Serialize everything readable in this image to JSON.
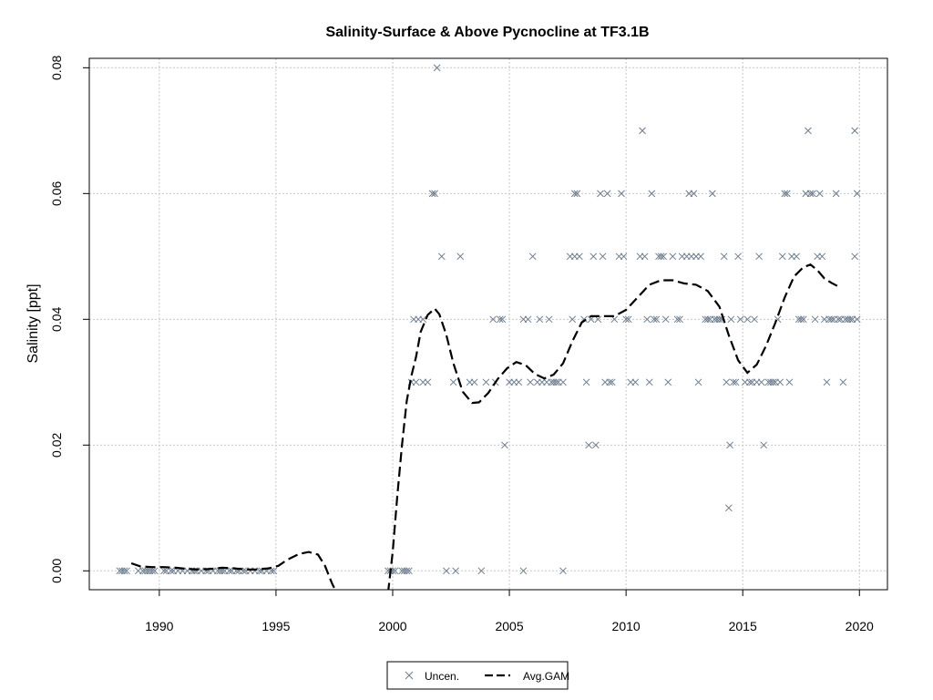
{
  "chart_data": {
    "type": "scatter",
    "title": "Salinity-Surface & Above Pycnocline at TF3.1B",
    "xlabel": "",
    "ylabel": "Salinity [ppt]",
    "xlim": [
      1987.0,
      2021.2
    ],
    "ylim": [
      -0.003,
      0.0815
    ],
    "x_ticks": [
      1990,
      1995,
      2000,
      2005,
      2010,
      2015,
      2020
    ],
    "y_ticks": [
      0.0,
      0.02,
      0.04,
      0.06,
      0.08
    ],
    "y_tick_labels": [
      "0.00",
      "0.02",
      "0.04",
      "0.06",
      "0.08"
    ],
    "grid": true,
    "legend_position": "bottom-center",
    "legend": [
      {
        "label": "Uncen.",
        "marker": "x",
        "color": "#6b7b8c"
      },
      {
        "label": "Avg.GAM",
        "style": "dashed",
        "color": "#000000"
      }
    ],
    "series": [
      {
        "name": "Uncen.",
        "marker": "x",
        "color": "#6b7b8c",
        "points": [
          [
            1988.3,
            0
          ],
          [
            1988.4,
            0
          ],
          [
            1988.5,
            0
          ],
          [
            1988.6,
            0
          ],
          [
            1989.1,
            0
          ],
          [
            1989.3,
            0
          ],
          [
            1989.4,
            0
          ],
          [
            1989.5,
            0
          ],
          [
            1989.6,
            0
          ],
          [
            1989.7,
            0
          ],
          [
            1989.8,
            0
          ],
          [
            1990.2,
            0
          ],
          [
            1990.3,
            0
          ],
          [
            1990.5,
            0
          ],
          [
            1990.6,
            0
          ],
          [
            1990.8,
            0
          ],
          [
            1991.0,
            0
          ],
          [
            1991.2,
            0
          ],
          [
            1991.4,
            0
          ],
          [
            1991.5,
            0
          ],
          [
            1991.6,
            0
          ],
          [
            1991.8,
            0
          ],
          [
            1992.0,
            0
          ],
          [
            1992.1,
            0
          ],
          [
            1992.3,
            0
          ],
          [
            1992.5,
            0
          ],
          [
            1992.6,
            0
          ],
          [
            1992.7,
            0
          ],
          [
            1992.8,
            0
          ],
          [
            1993.0,
            0
          ],
          [
            1993.1,
            0
          ],
          [
            1993.3,
            0
          ],
          [
            1993.4,
            0
          ],
          [
            1993.6,
            0
          ],
          [
            1993.7,
            0
          ],
          [
            1993.9,
            0
          ],
          [
            1994.1,
            0
          ],
          [
            1994.3,
            0
          ],
          [
            1994.4,
            0
          ],
          [
            1994.6,
            0
          ],
          [
            1994.8,
            0
          ],
          [
            1994.9,
            0
          ],
          [
            1999.8,
            0
          ],
          [
            1999.9,
            0
          ],
          [
            2000.0,
            0
          ],
          [
            2000.1,
            0
          ],
          [
            2000.4,
            0
          ],
          [
            2000.5,
            0
          ],
          [
            2000.6,
            0
          ],
          [
            2000.7,
            0
          ],
          [
            2000.8,
            0.03
          ],
          [
            2001.0,
            0.03
          ],
          [
            2000.9,
            0.04
          ],
          [
            2001.1,
            0.04
          ],
          [
            2001.3,
            0.04
          ],
          [
            2001.3,
            0.03
          ],
          [
            2001.5,
            0.03
          ],
          [
            2001.7,
            0.06
          ],
          [
            2001.8,
            0.06
          ],
          [
            2001.9,
            0.08
          ],
          [
            2002.1,
            0.05
          ],
          [
            2002.3,
            0
          ],
          [
            2002.6,
            0.03
          ],
          [
            2002.7,
            0
          ],
          [
            2002.9,
            0.05
          ],
          [
            2003.3,
            0.03
          ],
          [
            2003.5,
            0.03
          ],
          [
            2003.8,
            0
          ],
          [
            2004.0,
            0.03
          ],
          [
            2004.3,
            0.04
          ],
          [
            2004.4,
            0.03
          ],
          [
            2004.6,
            0.04
          ],
          [
            2004.7,
            0.04
          ],
          [
            2004.8,
            0.02
          ],
          [
            2005.0,
            0.03
          ],
          [
            2005.2,
            0.03
          ],
          [
            2005.4,
            0.03
          ],
          [
            2005.6,
            0
          ],
          [
            2005.6,
            0.04
          ],
          [
            2005.8,
            0.04
          ],
          [
            2005.9,
            0.03
          ],
          [
            2006.0,
            0.05
          ],
          [
            2006.2,
            0.03
          ],
          [
            2006.3,
            0.04
          ],
          [
            2006.4,
            0.03
          ],
          [
            2006.6,
            0.03
          ],
          [
            2006.7,
            0.04
          ],
          [
            2006.8,
            0.03
          ],
          [
            2006.9,
            0.03
          ],
          [
            2007.0,
            0.03
          ],
          [
            2007.1,
            0.03
          ],
          [
            2007.3,
            0
          ],
          [
            2007.3,
            0.03
          ],
          [
            2007.6,
            0.05
          ],
          [
            2007.7,
            0.04
          ],
          [
            2007.8,
            0.05
          ],
          [
            2007.8,
            0.06
          ],
          [
            2007.9,
            0.06
          ],
          [
            2008.0,
            0.05
          ],
          [
            2008.2,
            0.04
          ],
          [
            2008.3,
            0.03
          ],
          [
            2008.4,
            0.02
          ],
          [
            2008.5,
            0.04
          ],
          [
            2008.6,
            0.05
          ],
          [
            2008.7,
            0.02
          ],
          [
            2008.8,
            0.04
          ],
          [
            2008.9,
            0.06
          ],
          [
            2009.0,
            0.05
          ],
          [
            2009.1,
            0.03
          ],
          [
            2009.2,
            0.06
          ],
          [
            2009.3,
            0.03
          ],
          [
            2009.4,
            0.03
          ],
          [
            2009.5,
            0.04
          ],
          [
            2009.7,
            0.05
          ],
          [
            2009.8,
            0.06
          ],
          [
            2009.9,
            0.05
          ],
          [
            2010.0,
            0.04
          ],
          [
            2010.1,
            0.04
          ],
          [
            2010.2,
            0.03
          ],
          [
            2010.4,
            0.03
          ],
          [
            2010.6,
            0.05
          ],
          [
            2010.7,
            0.07
          ],
          [
            2010.8,
            0.05
          ],
          [
            2010.9,
            0.04
          ],
          [
            2011.0,
            0.03
          ],
          [
            2011.1,
            0.06
          ],
          [
            2011.2,
            0.04
          ],
          [
            2011.3,
            0.04
          ],
          [
            2011.4,
            0.05
          ],
          [
            2011.5,
            0.05
          ],
          [
            2011.6,
            0.05
          ],
          [
            2011.7,
            0.04
          ],
          [
            2011.8,
            0.03
          ],
          [
            2012.0,
            0.05
          ],
          [
            2012.2,
            0.04
          ],
          [
            2012.3,
            0.04
          ],
          [
            2012.4,
            0.05
          ],
          [
            2012.6,
            0.05
          ],
          [
            2012.7,
            0.06
          ],
          [
            2012.8,
            0.05
          ],
          [
            2012.9,
            0.06
          ],
          [
            2013.0,
            0.05
          ],
          [
            2013.1,
            0.03
          ],
          [
            2013.2,
            0.05
          ],
          [
            2013.4,
            0.04
          ],
          [
            2013.5,
            0.04
          ],
          [
            2013.6,
            0.04
          ],
          [
            2013.7,
            0.06
          ],
          [
            2013.8,
            0.04
          ],
          [
            2013.9,
            0.04
          ],
          [
            2014.0,
            0.04
          ],
          [
            2014.1,
            0.04
          ],
          [
            2014.2,
            0.05
          ],
          [
            2014.3,
            0.03
          ],
          [
            2014.4,
            0.01
          ],
          [
            2014.45,
            0.02
          ],
          [
            2014.5,
            0.04
          ],
          [
            2014.6,
            0.03
          ],
          [
            2014.7,
            0.03
          ],
          [
            2014.8,
            0.05
          ],
          [
            2014.9,
            0.04
          ],
          [
            2015.1,
            0.03
          ],
          [
            2015.2,
            0.04
          ],
          [
            2015.3,
            0.03
          ],
          [
            2015.4,
            0.03
          ],
          [
            2015.5,
            0.04
          ],
          [
            2015.6,
            0.03
          ],
          [
            2015.7,
            0.05
          ],
          [
            2015.8,
            0.03
          ],
          [
            2015.9,
            0.02
          ],
          [
            2016.1,
            0.03
          ],
          [
            2016.2,
            0.03
          ],
          [
            2016.3,
            0.03
          ],
          [
            2016.4,
            0.03
          ],
          [
            2016.5,
            0.04
          ],
          [
            2016.6,
            0.03
          ],
          [
            2016.7,
            0.05
          ],
          [
            2016.8,
            0.06
          ],
          [
            2016.9,
            0.06
          ],
          [
            2017.0,
            0.03
          ],
          [
            2017.1,
            0.05
          ],
          [
            2017.3,
            0.05
          ],
          [
            2017.4,
            0.04
          ],
          [
            2017.5,
            0.04
          ],
          [
            2017.6,
            0.04
          ],
          [
            2017.7,
            0.06
          ],
          [
            2017.8,
            0.07
          ],
          [
            2017.9,
            0.06
          ],
          [
            2018.0,
            0.06
          ],
          [
            2018.1,
            0.04
          ],
          [
            2018.2,
            0.05
          ],
          [
            2018.3,
            0.06
          ],
          [
            2018.4,
            0.05
          ],
          [
            2018.5,
            0.04
          ],
          [
            2018.6,
            0.03
          ],
          [
            2018.7,
            0.04
          ],
          [
            2018.8,
            0.04
          ],
          [
            2018.9,
            0.04
          ],
          [
            2019.0,
            0.06
          ],
          [
            2019.1,
            0.04
          ],
          [
            2019.2,
            0.04
          ],
          [
            2019.3,
            0.03
          ],
          [
            2019.4,
            0.04
          ],
          [
            2019.5,
            0.04
          ],
          [
            2019.6,
            0.04
          ],
          [
            2019.7,
            0.04
          ],
          [
            2019.8,
            0.07
          ],
          [
            2019.8,
            0.05
          ],
          [
            2019.9,
            0.04
          ],
          [
            2019.9,
            0.06
          ]
        ]
      },
      {
        "name": "Avg.GAM",
        "style": "dashed",
        "color": "#000000",
        "segments": [
          [
            [
              1988.8,
              0.0012
            ],
            [
              1989.2,
              0.0007
            ],
            [
              1989.7,
              0.0006
            ],
            [
              1990.2,
              0.0006
            ],
            [
              1990.7,
              0.0005
            ],
            [
              1991.2,
              0.0003
            ],
            [
              1991.7,
              0.0002
            ],
            [
              1992.2,
              0.0003
            ],
            [
              1992.7,
              0.0005
            ],
            [
              1993.2,
              0.0004
            ],
            [
              1993.7,
              0.0002
            ],
            [
              1994.2,
              0.0002
            ],
            [
              1994.7,
              0.0004
            ],
            [
              1995.1,
              0.0008
            ],
            [
              1995.5,
              0.0018
            ],
            [
              1996.0,
              0.0027
            ],
            [
              1996.4,
              0.003
            ],
            [
              1996.8,
              0.0026
            ],
            [
              1997.1,
              0.0008
            ],
            [
              1997.4,
              -0.002
            ],
            [
              1997.6,
              -0.0035
            ]
          ],
          [
            [
              1999.8,
              -0.0035
            ],
            [
              2000.0,
              0.003
            ],
            [
              2000.2,
              0.012
            ],
            [
              2000.4,
              0.02
            ],
            [
              2000.6,
              0.027
            ],
            [
              2000.8,
              0.031
            ],
            [
              2001.0,
              0.034
            ],
            [
              2001.2,
              0.038
            ],
            [
              2001.5,
              0.0407
            ],
            [
              2001.8,
              0.0417
            ],
            [
              2002.0,
              0.0408
            ],
            [
              2002.3,
              0.0375
            ],
            [
              2002.6,
              0.033
            ],
            [
              2003.0,
              0.0285
            ],
            [
              2003.4,
              0.0267
            ],
            [
              2003.7,
              0.0268
            ],
            [
              2004.1,
              0.0283
            ],
            [
              2004.5,
              0.0305
            ],
            [
              2004.9,
              0.0322
            ],
            [
              2005.3,
              0.0332
            ],
            [
              2005.7,
              0.0327
            ],
            [
              2006.1,
              0.0313
            ],
            [
              2006.5,
              0.0306
            ],
            [
              2006.9,
              0.0312
            ],
            [
              2007.3,
              0.033
            ],
            [
              2007.7,
              0.0365
            ],
            [
              2008.1,
              0.0395
            ],
            [
              2008.5,
              0.0405
            ],
            [
              2009.0,
              0.0405
            ],
            [
              2009.5,
              0.0405
            ],
            [
              2010.0,
              0.0415
            ],
            [
              2010.5,
              0.0435
            ],
            [
              2011.0,
              0.0455
            ],
            [
              2011.5,
              0.0462
            ],
            [
              2012.0,
              0.0462
            ],
            [
              2012.5,
              0.0457
            ],
            [
              2013.0,
              0.0455
            ],
            [
              2013.5,
              0.0445
            ],
            [
              2014.0,
              0.042
            ],
            [
              2014.4,
              0.0375
            ],
            [
              2014.8,
              0.0335
            ],
            [
              2015.2,
              0.0315
            ],
            [
              2015.6,
              0.0328
            ],
            [
              2016.0,
              0.0358
            ],
            [
              2016.4,
              0.0395
            ],
            [
              2016.8,
              0.0435
            ],
            [
              2017.2,
              0.0468
            ],
            [
              2017.6,
              0.0483
            ],
            [
              2017.9,
              0.0487
            ],
            [
              2018.2,
              0.0478
            ],
            [
              2018.5,
              0.0465
            ],
            [
              2018.8,
              0.0458
            ],
            [
              2019.1,
              0.0452
            ],
            [
              2019.2,
              0.045
            ]
          ]
        ]
      }
    ]
  }
}
